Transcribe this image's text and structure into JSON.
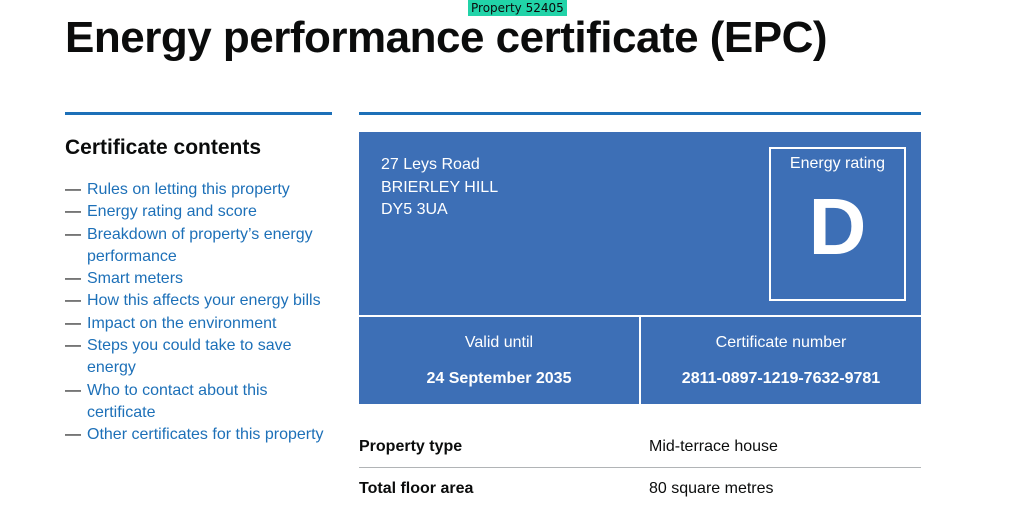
{
  "property_tag": "Property 52405",
  "page_title": "Energy performance certificate (EPC)",
  "contents": {
    "heading": "Certificate contents",
    "items": [
      {
        "label": "Rules on letting this property"
      },
      {
        "label": "Energy rating and score"
      },
      {
        "label": "Breakdown of property’s energy performance"
      },
      {
        "label": "Smart meters"
      },
      {
        "label": "How this affects your energy bills"
      },
      {
        "label": "Impact on the environment"
      },
      {
        "label": "Steps you could take to save energy"
      },
      {
        "label": "Who to contact about this certificate"
      },
      {
        "label": "Other certificates for this property"
      }
    ],
    "dash": "—"
  },
  "epc": {
    "address": {
      "line1": "27 Leys Road",
      "line2": "BRIERLEY HILL",
      "postcode": "DY5 3UA"
    },
    "rating_label": "Energy rating",
    "rating": "D",
    "valid_until_label": "Valid until",
    "valid_until": "24 September 2035",
    "certificate_number_label": "Certificate number",
    "certificate_number": "2811-0897-1219-7632-9781",
    "colors": {
      "panel": "#3d6fb6",
      "link": "#1d70b8",
      "tag": "#21d3a8"
    }
  },
  "summary": [
    {
      "key": "Property type",
      "value": "Mid-terrace house"
    },
    {
      "key": "Total floor area",
      "value": "80 square metres"
    }
  ]
}
